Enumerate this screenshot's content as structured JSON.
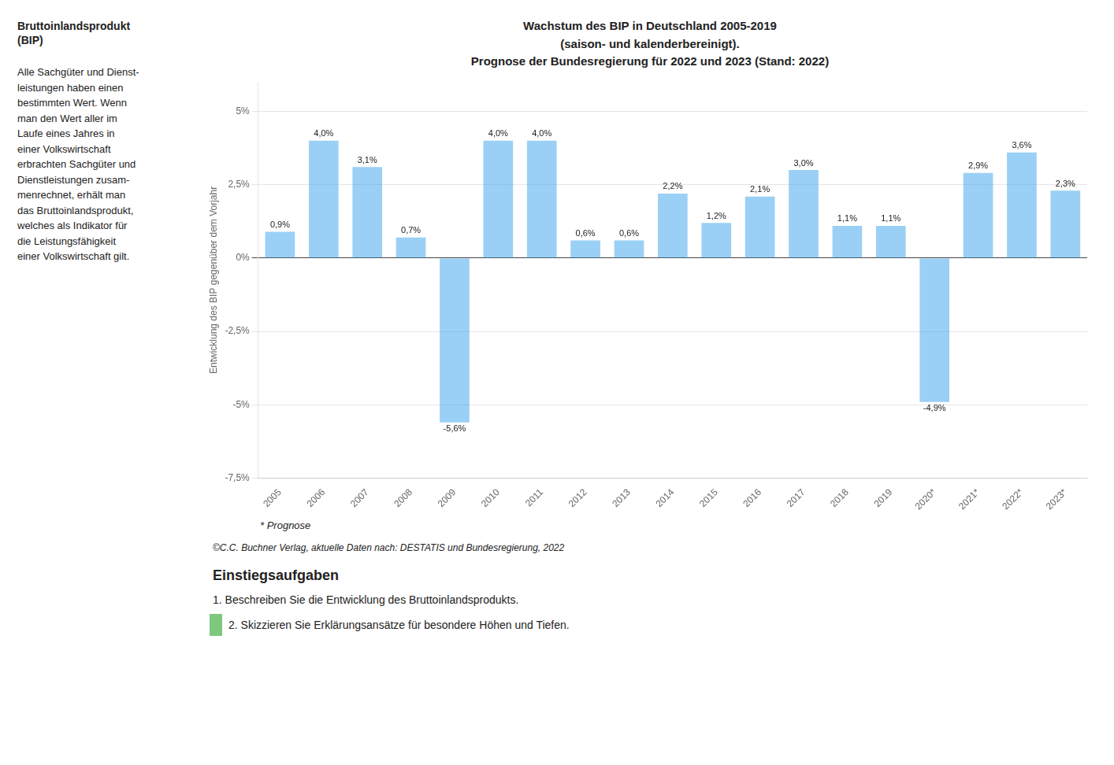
{
  "chart_data": {
    "type": "bar",
    "title": [
      "Wachstum des BIP in Deutschland 2005-2019",
      "(saison- und kalenderbereinigt).",
      "Prognose der Bundesregierung für 2022 und 2023 (Stand: 2022)"
    ],
    "y_label": "Entwicklung des BIP gegenüber dem Vorjahr",
    "categories": [
      "2005",
      "2006",
      "2007",
      "2008",
      "2009",
      "2010",
      "2011",
      "2012",
      "2013",
      "2014",
      "2015",
      "2016",
      "2017",
      "2018",
      "2019",
      "2020*",
      "2021*",
      "2022*",
      "2023*"
    ],
    "values": [
      0.9,
      4.0,
      3.1,
      0.7,
      -5.6,
      4.0,
      4.0,
      0.6,
      0.6,
      2.2,
      1.2,
      2.1,
      3.0,
      1.1,
      1.1,
      -4.9,
      2.9,
      3.6,
      2.3
    ],
    "value_labels": [
      "0,9%",
      "4,0%",
      "3,1%",
      "0,7%",
      "-5,6%",
      "4,0%",
      "4,0%",
      "0,6%",
      "0,6%",
      "2,2%",
      "1,2%",
      "2,1%",
      "3,0%",
      "1,1%",
      "1,1%",
      "-4,9%",
      "2,9%",
      "3,6%",
      "2,3%"
    ],
    "data_labels": true,
    "ylim": [
      -7.5,
      6.0
    ],
    "yticks": [
      {
        "value": -7.5,
        "label": "-7,5%"
      },
      {
        "value": -5.0,
        "label": "-5%"
      },
      {
        "value": -2.5,
        "label": "-2,5%"
      },
      {
        "value": 0.0,
        "label": "0%"
      },
      {
        "value": 2.5,
        "label": "2,5%"
      },
      {
        "value": 5.0,
        "label": "5%"
      }
    ],
    "grid": true,
    "annotations": [
      "* Prognose",
      "©C.C. Buchner Verlag, aktuelle Daten nach: DESTATIS und Bundesregierung, 2022",
      "Einstiegsaufgaben",
      "1.  Beschreiben Sie die Entwicklung des Bruttoinlandsprodukts.",
      "2.  Skizzieren Sie Erklärungsansätze für besondere Höhen und Tiefen.",
      "Bruttoinlandsprodukt\n(BIP)",
      "Alle Sachgüter und Dienst-\nleistungen haben einen\nbestimmten Wert. Wenn\nman den Wert aller im\nLaufe eines Jahres in\neiner Volkswirtschaft\nerbrachten Sachgüter und\nDienstleistungen zusam-\nmenrechnet, erhält man\ndas Bruttoinlandsprodukt,\nwelches als Indikator für\ndie Leistungsfähigkeit\neiner Volkswirtschaft gilt."
    ]
  }
}
